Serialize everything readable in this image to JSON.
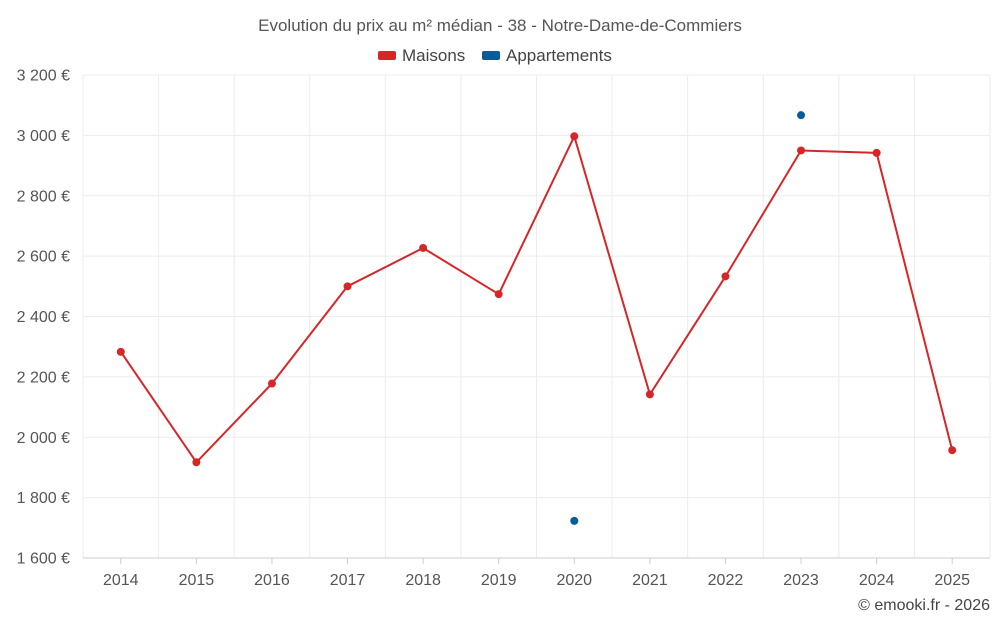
{
  "chart_data": {
    "type": "line",
    "title": "Evolution du prix au m² médian - 38 - Notre-Dame-de-Commiers",
    "xlabel": "",
    "ylabel": "",
    "categories": [
      "2014",
      "2015",
      "2016",
      "2017",
      "2018",
      "2019",
      "2020",
      "2021",
      "2022",
      "2023",
      "2024",
      "2025"
    ],
    "y_ticks": [
      1600,
      1800,
      2000,
      2200,
      2400,
      2600,
      2800,
      3000,
      3200
    ],
    "y_tick_labels": [
      "1 600 €",
      "1 800 €",
      "2 000 €",
      "2 200 €",
      "2 400 €",
      "2 600 €",
      "2 800 €",
      "3 000 €",
      "3 200 €"
    ],
    "ylim": [
      1600,
      3200
    ],
    "grid": true,
    "legend_position": "top-center",
    "series": [
      {
        "name": "Maisons",
        "color": "#d62728",
        "values": [
          2283,
          1917,
          2178,
          2500,
          2627,
          2474,
          2997,
          2142,
          2533,
          2950,
          2942,
          1957
        ]
      },
      {
        "name": "Appartements",
        "color": "#005f99",
        "values": [
          null,
          null,
          null,
          null,
          null,
          null,
          1723,
          null,
          null,
          3067,
          null,
          null
        ]
      }
    ]
  },
  "credit": "© emooki.fr - 2026"
}
